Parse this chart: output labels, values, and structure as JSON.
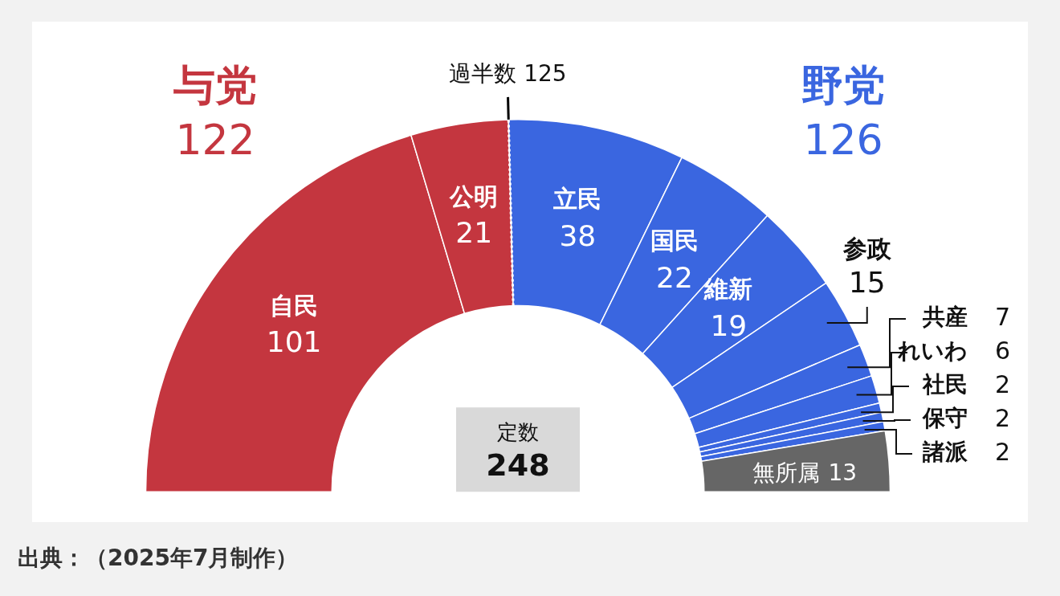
{
  "chart_data": {
    "type": "donut",
    "categories": [
      "自民",
      "公明",
      "立民",
      "国民",
      "維新",
      "参政",
      "共産",
      "れいわ",
      "社民",
      "保守",
      "諸派",
      "無所属"
    ],
    "values": [
      101,
      21,
      38,
      22,
      19,
      15,
      7,
      6,
      2,
      2,
      2,
      13
    ],
    "colors": [
      "#c4363f",
      "#c4363f",
      "#3a66e0",
      "#3a66e0",
      "#3a66e0",
      "#3a66e0",
      "#3a66e0",
      "#3a66e0",
      "#3a66e0",
      "#3a66e0",
      "#3a66e0",
      "#666666"
    ],
    "data_labels": true,
    "legend": false,
    "annotations": [
      "与党",
      "122",
      "野党",
      "126",
      "定数",
      "248",
      "過半数 125",
      "出典：（2025年7月制作）"
    ]
  }
}
